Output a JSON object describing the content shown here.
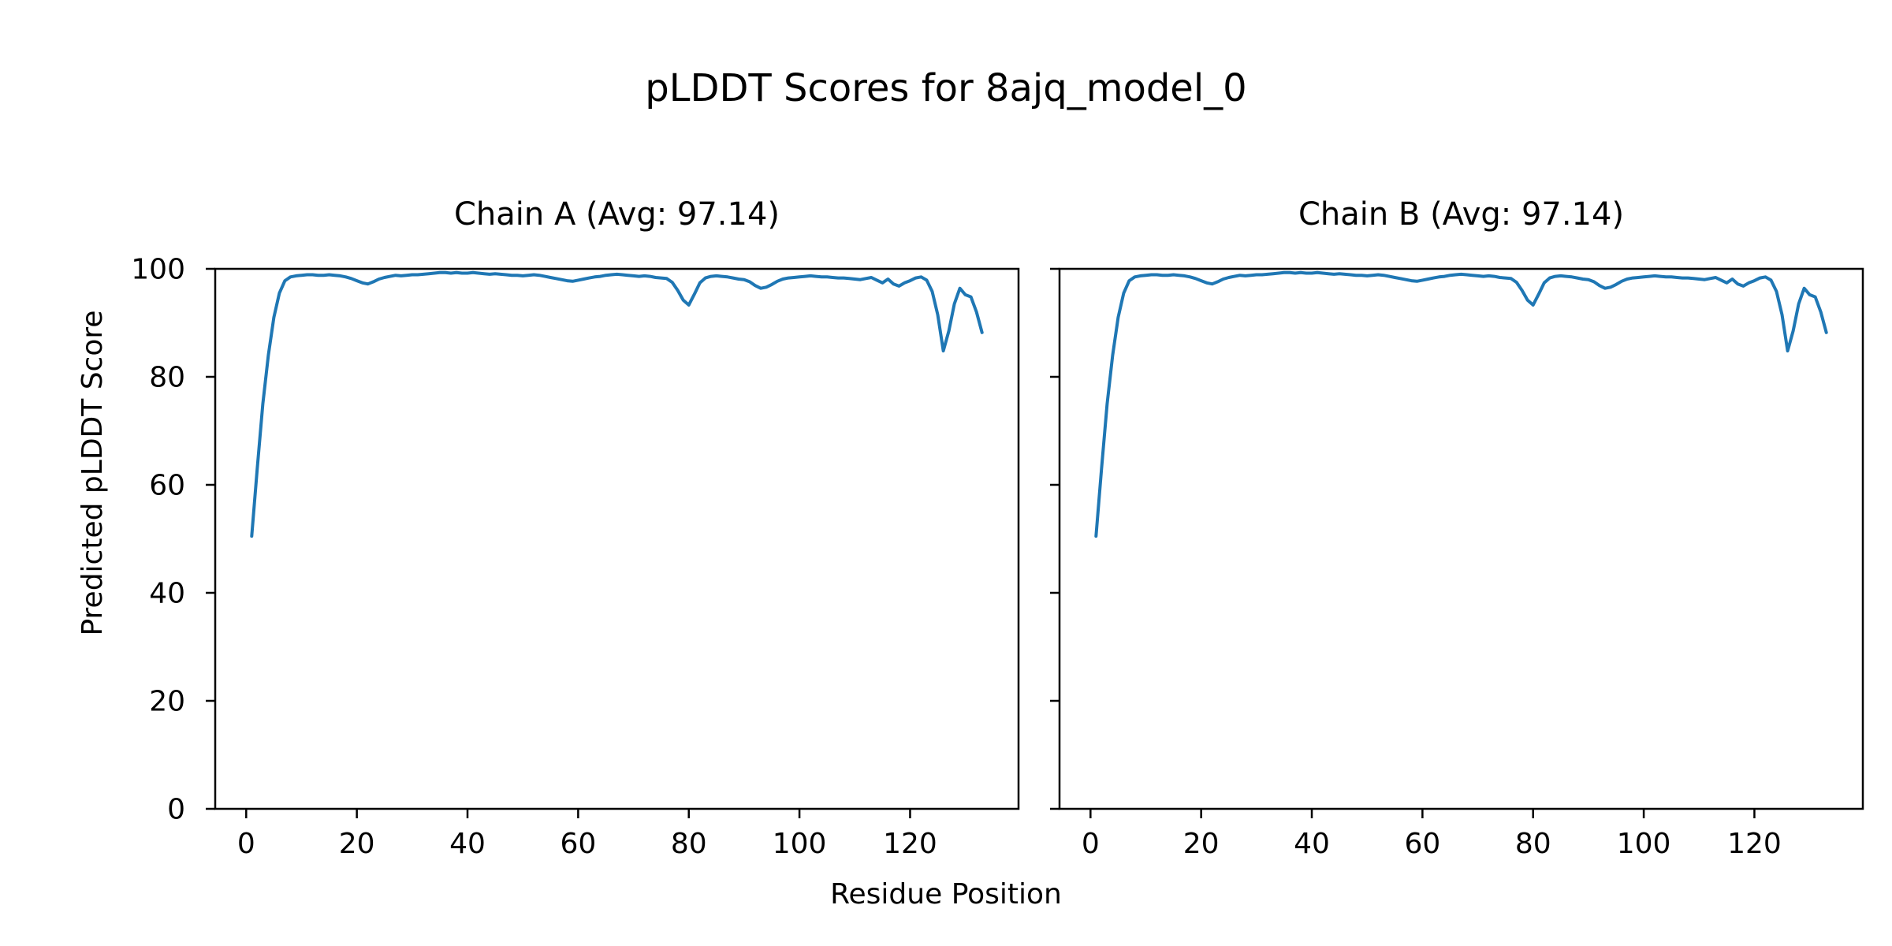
{
  "figure": {
    "suptitle": "pLDDT Scores for 8ajq_model_0",
    "xlabel": "Residue Position",
    "ylabel": "Predicted pLDDT Score"
  },
  "style": {
    "line_color": "#1f77b4",
    "axis_color": "#000000",
    "text_color": "#000000",
    "background_color": "#ffffff"
  },
  "chart_data": [
    {
      "type": "line",
      "title": "Chain A (Avg: 97.14)",
      "chain": "A",
      "avg": 97.14,
      "xlim": [
        -5.6,
        139.6
      ],
      "ylim": [
        0,
        100
      ],
      "xticks": [
        0,
        20,
        40,
        60,
        80,
        100,
        120
      ],
      "yticks": [
        0,
        20,
        40,
        60,
        80,
        100
      ],
      "show_ytick_labels": true,
      "grid": false,
      "legend": "none",
      "x_start": 1,
      "x_step": 1,
      "y": [
        50.5,
        63,
        75,
        84,
        91,
        95.5,
        97.8,
        98.5,
        98.7,
        98.8,
        98.9,
        98.9,
        98.8,
        98.8,
        98.9,
        98.8,
        98.7,
        98.5,
        98.2,
        97.8,
        97.4,
        97.2,
        97.6,
        98.1,
        98.4,
        98.6,
        98.8,
        98.7,
        98.8,
        98.9,
        98.9,
        99.0,
        99.1,
        99.2,
        99.3,
        99.3,
        99.2,
        99.3,
        99.2,
        99.2,
        99.3,
        99.2,
        99.1,
        99.0,
        99.1,
        99.0,
        98.9,
        98.8,
        98.8,
        98.7,
        98.8,
        98.9,
        98.8,
        98.6,
        98.4,
        98.2,
        98.0,
        97.8,
        97.7,
        97.9,
        98.1,
        98.3,
        98.5,
        98.6,
        98.8,
        98.9,
        99.0,
        98.9,
        98.8,
        98.7,
        98.6,
        98.7,
        98.6,
        98.4,
        98.3,
        98.2,
        97.5,
        96.0,
        94.2,
        93.3,
        95.3,
        97.4,
        98.3,
        98.6,
        98.7,
        98.6,
        98.5,
        98.3,
        98.1,
        98.0,
        97.6,
        96.9,
        96.4,
        96.6,
        97.1,
        97.7,
        98.1,
        98.3,
        98.4,
        98.5,
        98.6,
        98.7,
        98.6,
        98.5,
        98.5,
        98.4,
        98.3,
        98.3,
        98.2,
        98.1,
        98.0,
        98.2,
        98.4,
        97.9,
        97.4,
        98.1,
        97.2,
        96.8,
        97.4,
        97.8,
        98.3,
        98.5,
        97.9,
        95.8,
        91.5,
        84.8,
        88.5,
        93.5,
        96.4,
        95.2,
        94.8,
        92.0,
        88.2
      ]
    },
    {
      "type": "line",
      "title": "Chain B (Avg: 97.14)",
      "chain": "B",
      "avg": 97.14,
      "xlim": [
        -5.6,
        139.6
      ],
      "ylim": [
        0,
        100
      ],
      "xticks": [
        0,
        20,
        40,
        60,
        80,
        100,
        120
      ],
      "yticks": [
        0,
        20,
        40,
        60,
        80,
        100
      ],
      "show_ytick_labels": false,
      "grid": false,
      "legend": "none",
      "x_start": 1,
      "x_step": 1,
      "y": [
        50.5,
        63,
        75,
        84,
        91,
        95.5,
        97.8,
        98.5,
        98.7,
        98.8,
        98.9,
        98.9,
        98.8,
        98.8,
        98.9,
        98.8,
        98.7,
        98.5,
        98.2,
        97.8,
        97.4,
        97.2,
        97.6,
        98.1,
        98.4,
        98.6,
        98.8,
        98.7,
        98.8,
        98.9,
        98.9,
        99.0,
        99.1,
        99.2,
        99.3,
        99.3,
        99.2,
        99.3,
        99.2,
        99.2,
        99.3,
        99.2,
        99.1,
        99.0,
        99.1,
        99.0,
        98.9,
        98.8,
        98.8,
        98.7,
        98.8,
        98.9,
        98.8,
        98.6,
        98.4,
        98.2,
        98.0,
        97.8,
        97.7,
        97.9,
        98.1,
        98.3,
        98.5,
        98.6,
        98.8,
        98.9,
        99.0,
        98.9,
        98.8,
        98.7,
        98.6,
        98.7,
        98.6,
        98.4,
        98.3,
        98.2,
        97.5,
        96.0,
        94.2,
        93.3,
        95.3,
        97.4,
        98.3,
        98.6,
        98.7,
        98.6,
        98.5,
        98.3,
        98.1,
        98.0,
        97.6,
        96.9,
        96.4,
        96.6,
        97.1,
        97.7,
        98.1,
        98.3,
        98.4,
        98.5,
        98.6,
        98.7,
        98.6,
        98.5,
        98.5,
        98.4,
        98.3,
        98.3,
        98.2,
        98.1,
        98.0,
        98.2,
        98.4,
        97.9,
        97.4,
        98.1,
        97.2,
        96.8,
        97.4,
        97.8,
        98.3,
        98.5,
        97.9,
        95.8,
        91.5,
        84.8,
        88.5,
        93.5,
        96.4,
        95.2,
        94.8,
        92.0,
        88.2
      ]
    }
  ]
}
